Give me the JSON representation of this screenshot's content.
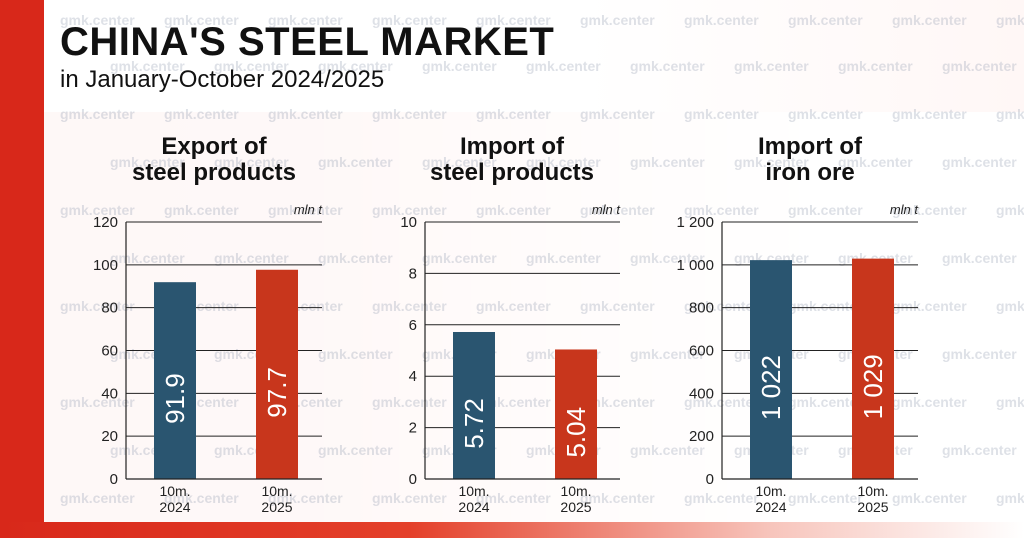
{
  "header": {
    "title": "CHINA'S STEEL MARKET",
    "subtitle": "in January-October 2024/2025"
  },
  "watermark_text": "gmk.center",
  "colors": {
    "bar_2024": "#2a5570",
    "bar_2025": "#c8361c",
    "grid": "#222222"
  },
  "chart_data": [
    {
      "type": "bar",
      "title": "Export of steel products",
      "title_lines": [
        "Export of",
        "steel products"
      ],
      "unit": "mln t",
      "categories": [
        "10m.\n2024",
        "10m.\n2025"
      ],
      "category_lines": [
        [
          "10m.",
          "2024"
        ],
        [
          "10m.",
          "2025"
        ]
      ],
      "values": [
        91.9,
        97.7
      ],
      "value_labels": [
        "91.9",
        "97.7"
      ],
      "ylim": [
        0,
        120
      ],
      "yticks": [
        0,
        20,
        40,
        60,
        80,
        100,
        120
      ],
      "ytick_labels": [
        "0",
        "20",
        "40",
        "60",
        "80",
        "100",
        "120"
      ],
      "grid": true
    },
    {
      "type": "bar",
      "title": "Import of steel products",
      "title_lines": [
        "Import of",
        "steel products"
      ],
      "unit": "mln t",
      "categories": [
        "10m.\n2024",
        "10m.\n2025"
      ],
      "category_lines": [
        [
          "10m.",
          "2024"
        ],
        [
          "10m.",
          "2025"
        ]
      ],
      "values": [
        5.72,
        5.04
      ],
      "value_labels": [
        "5.72",
        "5.04"
      ],
      "ylim": [
        0,
        10
      ],
      "yticks": [
        0,
        2,
        4,
        6,
        8,
        10
      ],
      "ytick_labels": [
        "0",
        "2",
        "4",
        "6",
        "8",
        "10"
      ],
      "grid": true
    },
    {
      "type": "bar",
      "title": "Import of iron ore",
      "title_lines": [
        "Import of",
        "iron ore"
      ],
      "unit": "mln t",
      "categories": [
        "10m.\n2024",
        "10m.\n2025"
      ],
      "category_lines": [
        [
          "10m.",
          "2024"
        ],
        [
          "10m.",
          "2025"
        ]
      ],
      "values": [
        1022,
        1029
      ],
      "value_labels": [
        "1 022",
        "1 029"
      ],
      "ylim": [
        0,
        1200
      ],
      "yticks": [
        0,
        200,
        400,
        600,
        800,
        1000,
        1200
      ],
      "ytick_labels": [
        "0",
        "200",
        "400",
        "600",
        "800",
        "1 000",
        "1 200"
      ],
      "grid": true
    }
  ]
}
